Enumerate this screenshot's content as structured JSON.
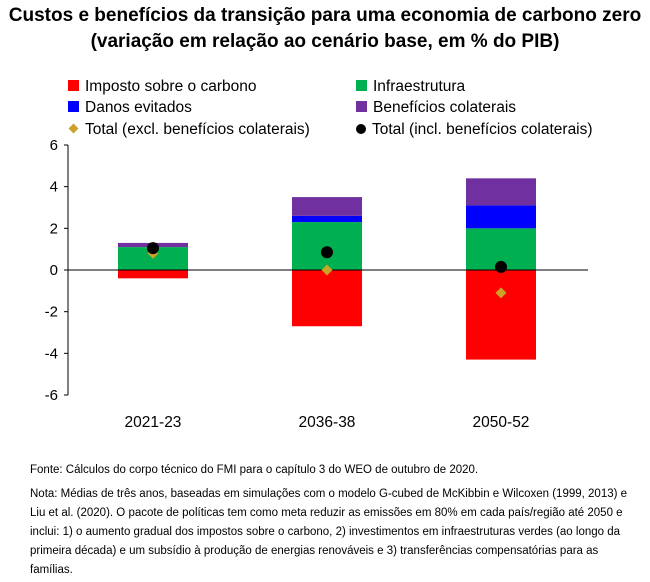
{
  "title_line1": "Custos e benefícios da transição para uma economia de carbono zero",
  "title_line2": "(variação em relação ao cenário base, em % do PIB)",
  "legend": [
    {
      "label": "Imposto sobre o carbono",
      "color": "#ff0000",
      "marker": "square"
    },
    {
      "label": "Infraestrutura",
      "color": "#00b050",
      "marker": "square"
    },
    {
      "label": "Danos evitados",
      "color": "#0000ff",
      "marker": "square"
    },
    {
      "label": "Benefícios colaterais",
      "color": "#7030a0",
      "marker": "square"
    },
    {
      "label": "Total (excl. benefícios colaterais)",
      "color": "#c9a227",
      "marker": "diamond"
    },
    {
      "label": "Total (incl. benefícios colaterais)",
      "color": "#000000",
      "marker": "circle"
    }
  ],
  "chart_data": {
    "type": "bar",
    "stacked": true,
    "categories": [
      "2021-23",
      "2036-38",
      "2050-52"
    ],
    "series": [
      {
        "name": "Imposto sobre o carbono",
        "color": "#ff0000",
        "values": [
          -0.4,
          -2.7,
          -4.3
        ]
      },
      {
        "name": "Infraestrutura",
        "color": "#00b050",
        "values": [
          1.1,
          2.3,
          2.0
        ]
      },
      {
        "name": "Danos evitados",
        "color": "#0000ff",
        "values": [
          0.0,
          0.3,
          1.1
        ]
      },
      {
        "name": "Benefícios colaterais",
        "color": "#7030a0",
        "values": [
          0.2,
          0.9,
          1.3
        ]
      }
    ],
    "markers": [
      {
        "name": "Total (excl. benefícios colaterais)",
        "shape": "diamond",
        "color": "#c9a227",
        "values": [
          0.8,
          0.0,
          -1.1
        ]
      },
      {
        "name": "Total (incl. benefícios colaterais)",
        "shape": "circle",
        "color": "#000000",
        "values": [
          1.05,
          0.85,
          0.15
        ]
      }
    ],
    "y_ticks": [
      6,
      4,
      2,
      0,
      -2,
      -4,
      -6
    ],
    "ylim": [
      -6,
      6
    ],
    "grid": false
  },
  "source_text": "Fonte: Cálculos do corpo técnico do FMI para o capítulo 3 do WEO de outubro de 2020.",
  "note_text": "Nota: Médias de três anos, baseadas em simulações com o modelo G-cubed de McKibbin e Wilcoxen (1999, 2013) e Liu et al. (2020). O pacote de políticas tem como meta reduzir as emissões em 80% em cada país/região até 2050 e inclui: 1) o aumento gradual dos impostos sobre o carbono, 2) investimentos em infraestruturas verdes (ao longo da primeira década) e um subsídio à produção de energias renováveis e 3) transferências compensatórias para as famílias."
}
